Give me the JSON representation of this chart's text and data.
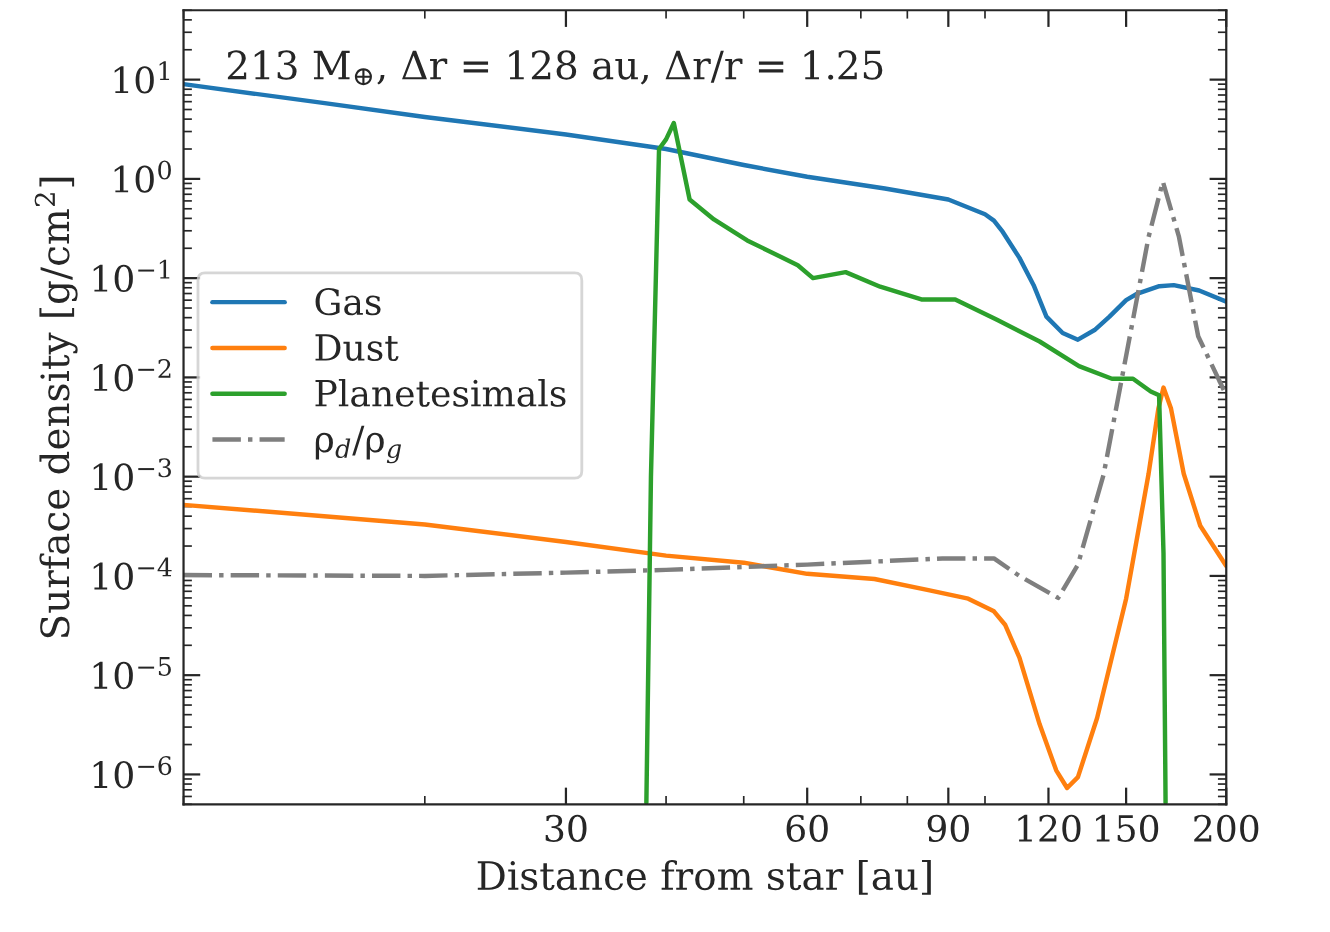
{
  "chart_data": {
    "type": "line",
    "xlabel": "Distance from star [au]",
    "ylabel": "Surface density [g/cm$^{2}$]",
    "annotations": [
      "213 M$_{⊕}$, Δr = 128 au, Δr/r = 1.25"
    ],
    "log": "xy",
    "grid": false,
    "legend": "center left",
    "xlim": [
      10,
      200
    ],
    "xticks": [
      30,
      60,
      90,
      120,
      150,
      200
    ],
    "ylim": [
      5e-07,
      50
    ],
    "yticks": [
      {
        "value": 1e-06,
        "label": "10$^{−6}$"
      },
      {
        "value": 1e-05,
        "label": "10$^{−5}$"
      },
      {
        "value": 0.0001,
        "label": "10$^{−4}$"
      },
      {
        "value": 0.001,
        "label": "10$^{−3}$"
      },
      {
        "value": 0.01,
        "label": "10$^{−2}$"
      },
      {
        "value": 0.1,
        "label": "10$^{−1}$"
      },
      {
        "value": 1,
        "label": "10$^{0}$"
      },
      {
        "value": 10,
        "label": "10$^{1}$"
      }
    ],
    "series": [
      {
        "name": "Gas",
        "color": "#1f77b4",
        "line_style": "solid",
        "x": [
          10,
          15,
          20,
          30,
          40,
          50,
          60,
          75,
          90,
          100,
          102.6,
          105,
          110.4,
          115,
          119.3,
          125,
          130.6,
          137,
          143,
          150,
          155,
          165,
          172,
          185,
          200
        ],
        "values": [
          9,
          5.8,
          4.2,
          2.8,
          2.0,
          1.38,
          1.05,
          0.8,
          0.62,
          0.44,
          0.38,
          0.3,
          0.16,
          0.085,
          0.041,
          0.028,
          0.024,
          0.03,
          0.041,
          0.06,
          0.07,
          0.083,
          0.085,
          0.075,
          0.058
        ]
      },
      {
        "name": "Dust",
        "color": "#ff7f0e",
        "line_style": "solid",
        "x": [
          10,
          20,
          30,
          40,
          50,
          60,
          72.8,
          85,
          95.3,
          102.6,
          106,
          110.4,
          117,
          122.7,
          126.6,
          130.6,
          138,
          150,
          160,
          164.6,
          167,
          170.6,
          177,
          185.6,
          200
        ],
        "values": [
          0.00052,
          0.00033,
          0.00022,
          0.00016,
          0.000136,
          0.000105,
          9.3e-05,
          7.2e-05,
          5.9e-05,
          4.4e-05,
          3.2e-05,
          1.5e-05,
          3.2e-06,
          1.1e-06,
          7.3e-07,
          9.4e-07,
          3.7e-06,
          5.9e-05,
          0.00107,
          0.0049,
          0.0079,
          0.0049,
          0.00107,
          0.00032,
          0.000126
        ]
      },
      {
        "name": "Planetesimals",
        "color": "#2ca02c",
        "line_style": "solid",
        "x": [
          37.8,
          38.3,
          39.2,
          40.0,
          40.9,
          42.8,
          45.9,
          50.5,
          58.4,
          61,
          67,
          74,
          83.3,
          91.8,
          103.5,
          117,
          131,
          144,
          153,
          161,
          164.9,
          167,
          168
        ],
        "values": [
          5.2e-07,
          0.001,
          2.0,
          2.5,
          3.66,
          0.62,
          0.39,
          0.24,
          0.135,
          0.1,
          0.115,
          0.082,
          0.061,
          0.061,
          0.038,
          0.023,
          0.013,
          0.0097,
          0.0097,
          0.0072,
          0.0066,
          0.00017,
          5.2e-07
        ]
      },
      {
        "name": "ρ$_{d}$/ρ$_{g}$",
        "color": "#7f7f7f",
        "line_style": "dashdot",
        "x": [
          10,
          20,
          30,
          40,
          60,
          88.5,
          102.6,
          110.4,
          123.4,
          130.6,
          140.6,
          150,
          160,
          166.7,
          174.6,
          184.5,
          200
        ],
        "values": [
          0.000102,
          0.0001,
          0.000108,
          0.000115,
          0.00013,
          0.00015,
          0.00015,
          0.0001,
          6e-05,
          0.00013,
          0.00105,
          0.0165,
          0.26,
          0.94,
          0.26,
          0.026,
          0.0066
        ]
      }
    ]
  }
}
